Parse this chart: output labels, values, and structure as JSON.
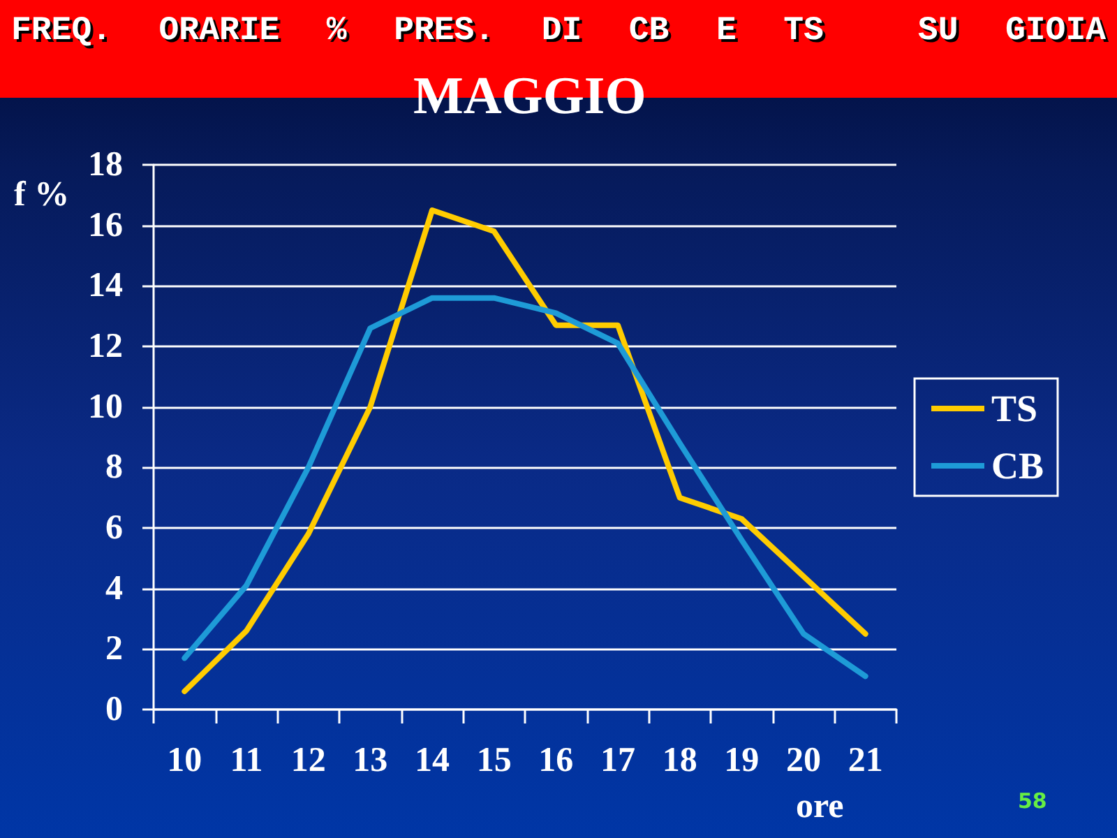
{
  "chart_data": {
    "type": "line",
    "title": "FREQ. ORARIE % PRES. DI CB E TS  SU GIOIA",
    "subtitle": "MAGGIO",
    "xlabel": "ore",
    "ylabel": "f %",
    "annotations": [
      "58"
    ],
    "categories": [
      "10",
      "11",
      "12",
      "13",
      "14",
      "15",
      "16",
      "17",
      "18",
      "19",
      "20",
      "21"
    ],
    "series": [
      {
        "name": "TS",
        "color": "#ffcc00",
        "values": [
          0.6,
          2.6,
          5.8,
          10.0,
          16.5,
          15.8,
          12.7,
          12.7,
          7.0,
          6.3,
          4.4,
          2.5
        ]
      },
      {
        "name": "CB",
        "color": "#1e9bd7",
        "values": [
          1.7,
          4.1,
          8.0,
          12.6,
          13.6,
          13.6,
          13.1,
          12.1,
          8.8,
          5.6,
          2.5,
          1.1
        ]
      }
    ],
    "ylim": [
      0,
      18
    ],
    "yticks": [
      0,
      2,
      4,
      6,
      8,
      10,
      12,
      14,
      16,
      18
    ],
    "grid": "y",
    "legend": "right",
    "marker": "none",
    "line_style": "solid"
  }
}
